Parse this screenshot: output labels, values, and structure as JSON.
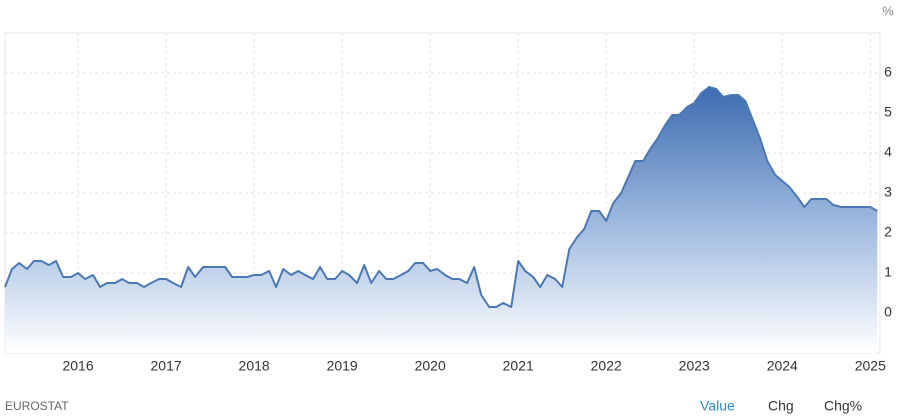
{
  "chart_data": {
    "type": "area",
    "y_label": "%",
    "color": "#4a78b5",
    "xlim": [
      2015.17,
      2025.11
    ],
    "xticks": [
      2016,
      2017,
      2018,
      2019,
      2020,
      2021,
      2022,
      2023,
      2024,
      2025
    ],
    "ylim": [
      -1,
      7
    ],
    "yticks": [
      0,
      1,
      2,
      3,
      4,
      5,
      6
    ],
    "grid": true,
    "x": [
      2015.17,
      2015.25,
      2015.33,
      2015.42,
      2015.5,
      2015.58,
      2015.67,
      2015.75,
      2015.83,
      2015.92,
      2016,
      2016.08,
      2016.17,
      2016.25,
      2016.33,
      2016.42,
      2016.5,
      2016.58,
      2016.67,
      2016.75,
      2016.83,
      2016.92,
      2017,
      2017.08,
      2017.17,
      2017.25,
      2017.33,
      2017.42,
      2017.5,
      2017.58,
      2017.67,
      2017.75,
      2017.83,
      2017.92,
      2018,
      2018.08,
      2018.17,
      2018.25,
      2018.33,
      2018.42,
      2018.5,
      2018.58,
      2018.67,
      2018.75,
      2018.83,
      2018.92,
      2019,
      2019.08,
      2019.17,
      2019.25,
      2019.33,
      2019.42,
      2019.5,
      2019.58,
      2019.67,
      2019.75,
      2019.83,
      2019.92,
      2020,
      2020.08,
      2020.17,
      2020.25,
      2020.33,
      2020.42,
      2020.5,
      2020.58,
      2020.67,
      2020.75,
      2020.83,
      2020.92,
      2021,
      2021.08,
      2021.17,
      2021.25,
      2021.33,
      2021.42,
      2021.5,
      2021.58,
      2021.67,
      2021.75,
      2021.83,
      2021.92,
      2022,
      2022.08,
      2022.17,
      2022.25,
      2022.33,
      2022.42,
      2022.5,
      2022.58,
      2022.67,
      2022.75,
      2022.83,
      2022.92,
      2023,
      2023.08,
      2023.17,
      2023.25,
      2023.33,
      2023.42,
      2023.5,
      2023.58,
      2023.67,
      2023.75,
      2023.83,
      2023.92,
      2024,
      2024.08,
      2024.17,
      2024.25,
      2024.33,
      2024.42,
      2024.5,
      2024.58,
      2024.67,
      2024.75,
      2024.83,
      2024.92,
      2025,
      2025.08
    ],
    "values": [
      0.65,
      1.1,
      1.25,
      1.1,
      1.3,
      1.3,
      1.2,
      1.3,
      0.9,
      0.9,
      1.0,
      0.85,
      0.95,
      0.65,
      0.75,
      0.75,
      0.85,
      0.75,
      0.75,
      0.65,
      0.75,
      0.85,
      0.85,
      0.75,
      0.65,
      1.15,
      0.9,
      1.15,
      1.15,
      1.15,
      1.15,
      0.9,
      0.9,
      0.9,
      0.95,
      0.95,
      1.05,
      0.65,
      1.1,
      0.95,
      1.05,
      0.95,
      0.85,
      1.15,
      0.85,
      0.85,
      1.05,
      0.95,
      0.75,
      1.2,
      0.75,
      1.05,
      0.85,
      0.85,
      0.95,
      1.05,
      1.25,
      1.25,
      1.05,
      1.1,
      0.95,
      0.85,
      0.85,
      0.75,
      1.15,
      0.45,
      0.15,
      0.15,
      0.25,
      0.15,
      1.3,
      1.05,
      0.9,
      0.65,
      0.95,
      0.85,
      0.65,
      1.6,
      1.9,
      2.1,
      2.55,
      2.55,
      2.3,
      2.75,
      3.0,
      3.4,
      3.8,
      3.8,
      4.1,
      4.35,
      4.7,
      4.95,
      4.95,
      5.15,
      5.25,
      5.5,
      5.65,
      5.6,
      5.4,
      5.45,
      5.45,
      5.3,
      4.8,
      4.35,
      3.8,
      3.45,
      3.3,
      3.15,
      2.9,
      2.65,
      2.85,
      2.85,
      2.85,
      2.7,
      2.65,
      2.65,
      2.65,
      2.65,
      2.65,
      2.55
    ]
  },
  "source": "EUROSTAT",
  "tabs": [
    "Value",
    "Chg",
    "Chg%"
  ]
}
